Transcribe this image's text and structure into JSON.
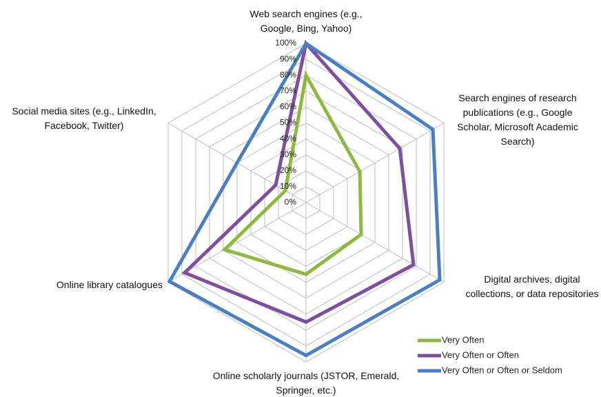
{
  "chart_data": {
    "type": "radar",
    "categories": [
      "Web search engines (e.g., Google, Bing, Yahoo)",
      "Search engines of research publications (e.g., Google Scholar, Microsoft Academic Search)",
      "Digital archives, digital collections, or data repositories",
      "Online scholarly journals (JSTOR, Emerald, Springer, etc.)",
      "Online library catalogues",
      "Social media sites (e.g., LinkedIn, Facebook, Twitter)"
    ],
    "series": [
      {
        "name": "Very Often",
        "color": "#8db943",
        "values": [
          80,
          39,
          40,
          45,
          59,
          15
        ]
      },
      {
        "name": "Very Often or Often",
        "color": "#7d4f9e",
        "values": [
          100,
          68,
          78,
          75,
          88,
          22
        ]
      },
      {
        "name": "Very Often or Often or Seldom",
        "color": "#4a7fc1",
        "values": [
          100,
          92,
          97,
          96,
          99,
          50
        ]
      }
    ],
    "ylim": [
      0,
      100
    ],
    "yticks": [
      {
        "value": 0,
        "label": "0%"
      },
      {
        "value": 10,
        "label": "10%"
      },
      {
        "value": 20,
        "label": "20%"
      },
      {
        "value": 30,
        "label": "30%"
      },
      {
        "value": 40,
        "label": "40%"
      },
      {
        "value": 50,
        "label": "50%"
      },
      {
        "value": 60,
        "label": "60%"
      },
      {
        "value": 70,
        "label": "70%"
      },
      {
        "value": 80,
        "label": "80%"
      },
      {
        "value": 90,
        "label": "90%"
      },
      {
        "value": 100,
        "label": "100%"
      }
    ],
    "grid": true,
    "legend": "bottom-right"
  }
}
